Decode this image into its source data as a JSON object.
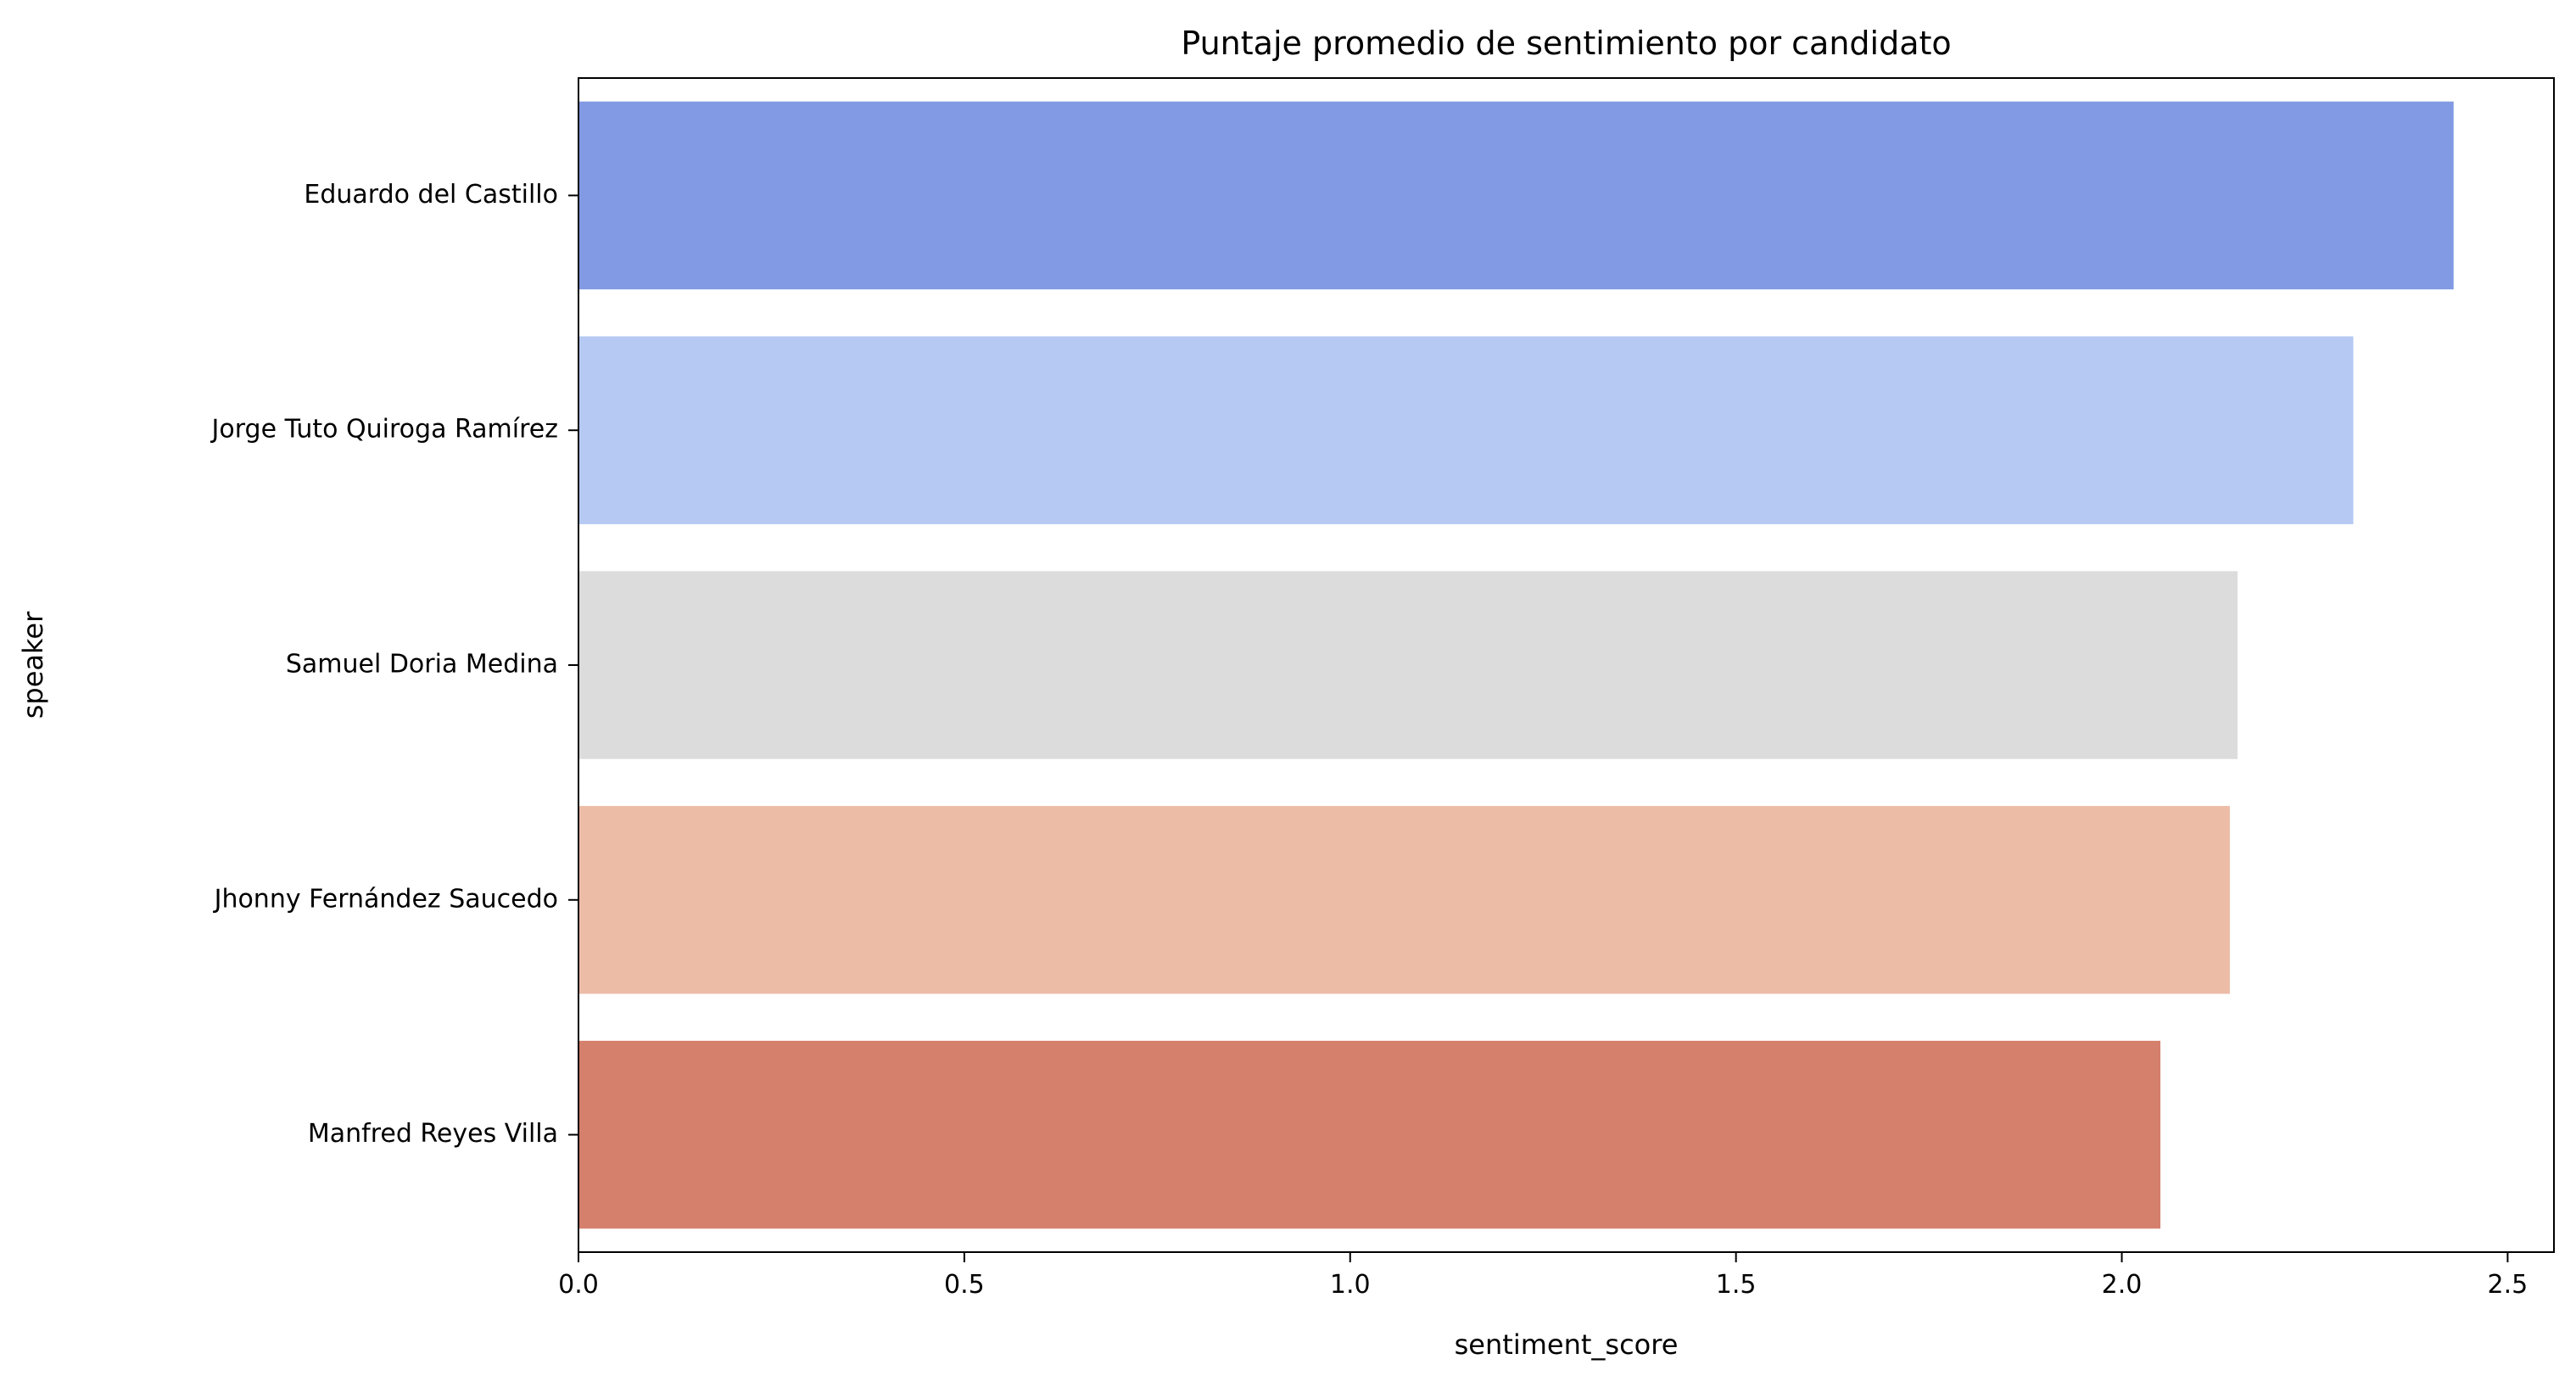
{
  "chart_data": {
    "type": "bar",
    "orientation": "horizontal",
    "title": "Puntaje promedio de sentimiento por candidato",
    "xlabel": "sentiment_score",
    "ylabel": "speaker",
    "xlim": [
      0,
      2.56
    ],
    "xticks": [
      "0.0",
      "0.5",
      "1.0",
      "1.5",
      "2.0",
      "2.5"
    ],
    "categories": [
      "Eduardo del Castillo",
      "Jorge Tuto Quiroga Ramírez",
      "Samuel Doria Medina",
      "Jhonny Fernández Saucedo",
      "Manfred Reyes Villa"
    ],
    "values": [
      2.43,
      2.3,
      2.15,
      2.14,
      2.05
    ],
    "colors": [
      "#819AE3",
      "#B5C9F3",
      "#DCDCDC",
      "#ECBCA7",
      "#D57F6D"
    ],
    "grid": false,
    "legend": false
  }
}
